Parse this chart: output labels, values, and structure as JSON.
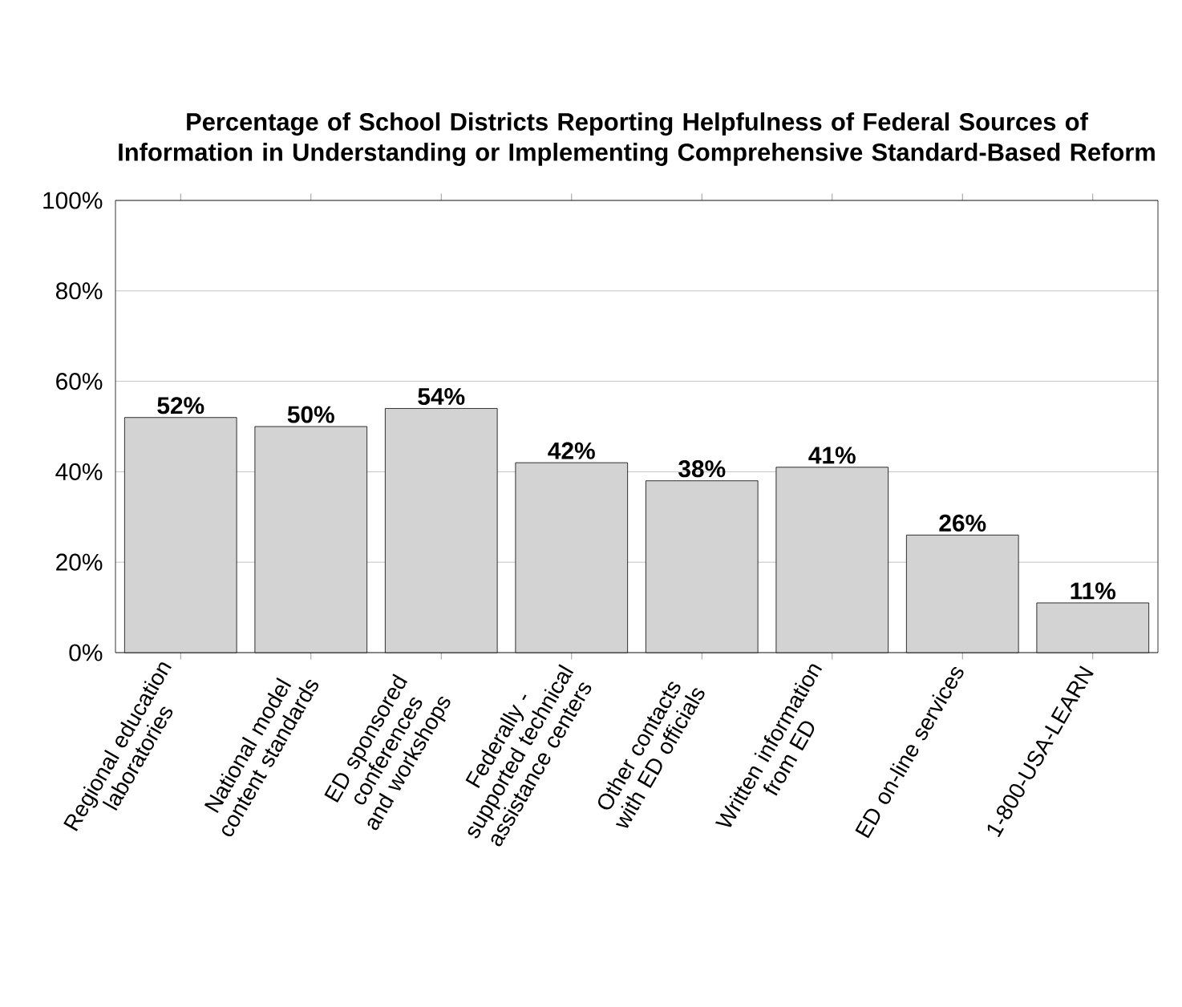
{
  "chart_data": {
    "type": "bar",
    "title": "Percentage of School Districts Reporting Helpfulness of Federal Sources of Information in Understanding or Implementing Comprehensive Standard-Based Reform",
    "categories": [
      "Regional education laboratories",
      "National model content standards",
      "ED sponsored conferences and workshops",
      "Federally -supported technical assistance centers",
      "Other contacts with ED officials",
      "Written information from ED",
      "ED on-line services",
      "1-800-USA-LEARN"
    ],
    "values": [
      52,
      50,
      54,
      42,
      38,
      41,
      26,
      11
    ],
    "value_labels": [
      "52%",
      "50%",
      "54%",
      "42%",
      "38%",
      "41%",
      "26%",
      "11%"
    ],
    "color": "#d3d3d3",
    "ylim": [
      0,
      100
    ],
    "yticks": [
      {
        "value": 0,
        "label": "0%"
      },
      {
        "value": 20,
        "label": "20%"
      },
      {
        "value": 40,
        "label": "40%"
      },
      {
        "value": 60,
        "label": "60%"
      },
      {
        "value": 80,
        "label": "80%"
      },
      {
        "value": 100,
        "label": "100%"
      }
    ],
    "grid": "y"
  }
}
